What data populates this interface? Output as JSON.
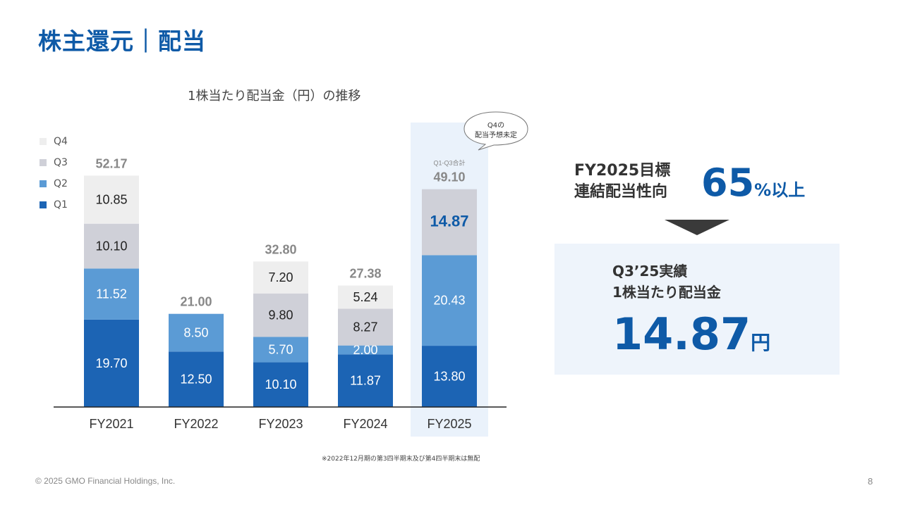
{
  "page": {
    "title": "株主還元｜配当",
    "copyright": "© 2025 GMO Financial Holdings, Inc.",
    "page_number": "8",
    "footnote": "※2022年12月期の第3四半期末及び第4四半期末は無配"
  },
  "bubble": {
    "line1": "Q4の",
    "line2": "配当予想未定"
  },
  "target": {
    "label_line1": "FY2025目標",
    "label_line2": "連結配当性向",
    "value": "65",
    "suffix": "%以上"
  },
  "result": {
    "label_line1": "Q3’25実績",
    "label_line2": "1株当たり配当金",
    "value": "14.87",
    "unit": "円"
  },
  "colors": {
    "Q1": "#1c64b4",
    "Q2": "#5b9bd5",
    "Q3": "#cfd0d8",
    "Q4": "#eeeeee",
    "accent": "#0e5aa7",
    "highlight_bg": "#eaf2fb"
  },
  "chart_data": {
    "type": "bar",
    "stacked": true,
    "title": "1株当たり配当金（円）の推移",
    "categories": [
      "FY2021",
      "FY2022",
      "FY2023",
      "FY2024",
      "FY2025"
    ],
    "series": [
      {
        "name": "Q1",
        "values": [
          19.7,
          12.5,
          10.1,
          11.87,
          13.8
        ],
        "labels": [
          "19.70",
          "12.50",
          "10.10",
          "11.87",
          "13.80"
        ]
      },
      {
        "name": "Q2",
        "values": [
          11.52,
          8.5,
          5.7,
          2.0,
          20.43
        ],
        "labels": [
          "11.52",
          "8.50",
          "5.70",
          "2.00",
          "20.43"
        ]
      },
      {
        "name": "Q3",
        "values": [
          10.1,
          0,
          9.8,
          8.27,
          14.87
        ],
        "labels": [
          "10.10",
          "",
          "9.80",
          "8.27",
          "14.87"
        ]
      },
      {
        "name": "Q4",
        "values": [
          10.85,
          0,
          7.2,
          5.24,
          0
        ],
        "labels": [
          "10.85",
          "",
          "7.20",
          "5.24",
          ""
        ]
      }
    ],
    "totals": [
      "52.17",
      "21.00",
      "32.80",
      "27.38",
      "49.10"
    ],
    "total_note_fy2025": "Q1-Q3合計",
    "legend": [
      "Q4",
      "Q3",
      "Q2",
      "Q1"
    ],
    "highlight_category": "FY2025",
    "ylim": [
      0,
      60
    ]
  }
}
